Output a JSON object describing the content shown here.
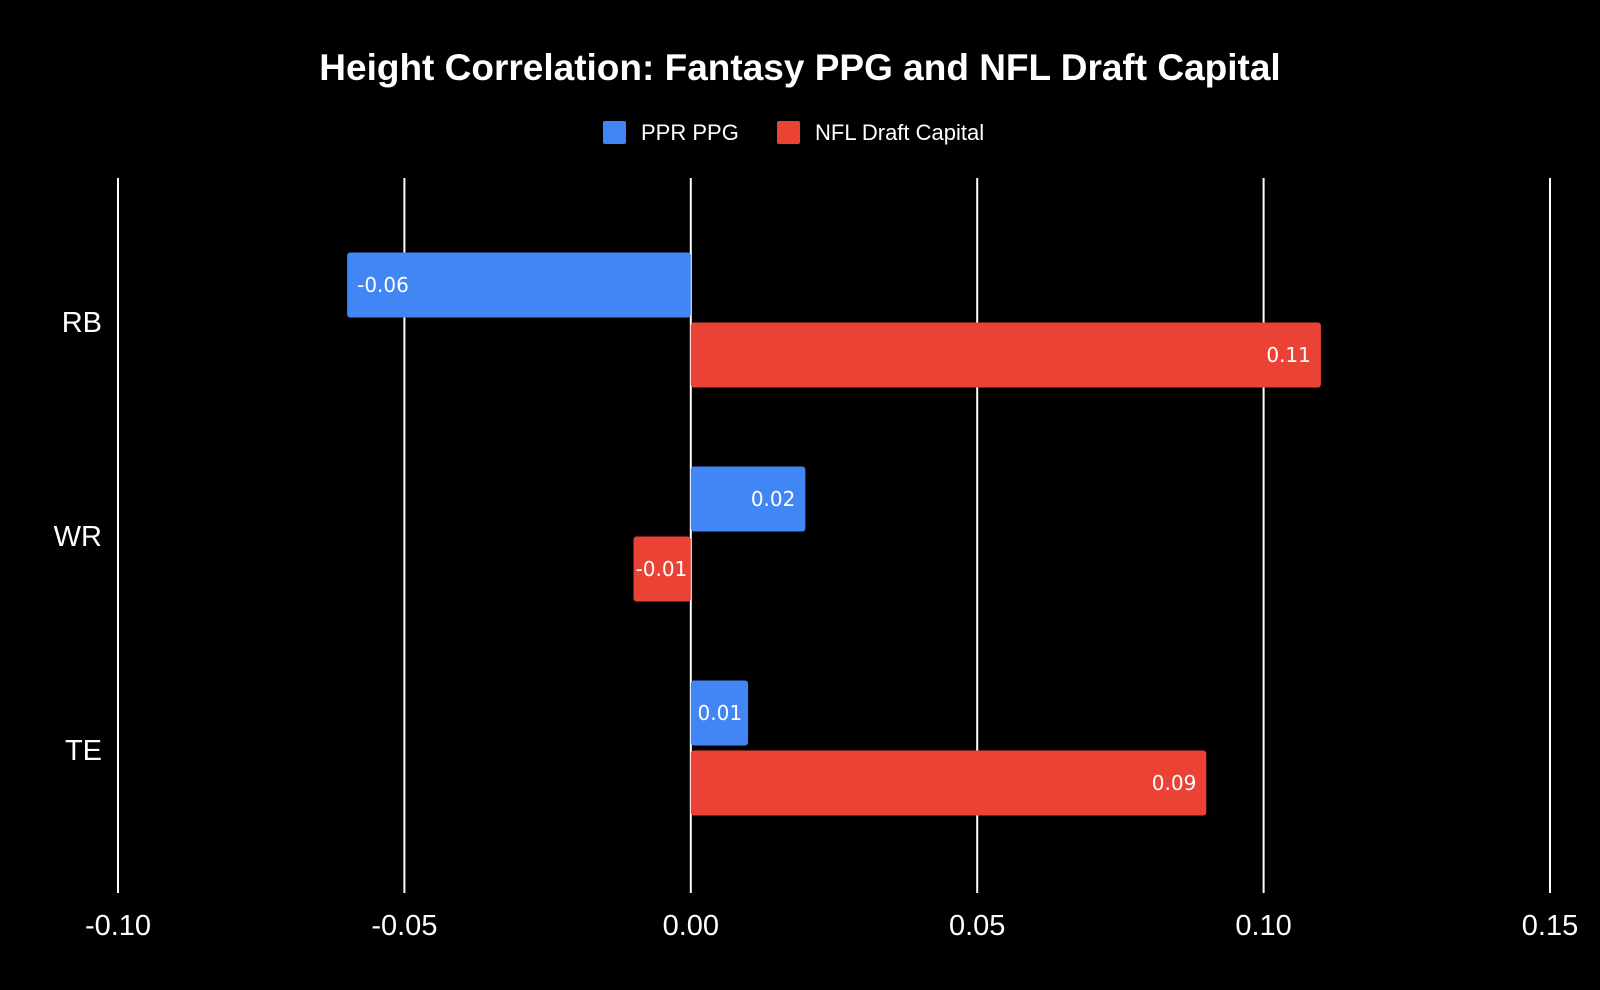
{
  "chart_data": {
    "type": "bar",
    "orientation": "horizontal",
    "title": "Height Correlation: Fantasy PPG and NFL Draft Capital",
    "categories": [
      "RB",
      "WR",
      "TE"
    ],
    "series": [
      {
        "name": "PPR PPG",
        "color": "#4285f4",
        "values": [
          -0.06,
          0.02,
          0.01
        ],
        "labels": [
          "-0.06",
          "0.02",
          "0.01"
        ]
      },
      {
        "name": "NFL Draft Capital",
        "color": "#ea4335",
        "values": [
          0.11,
          -0.01,
          0.09
        ],
        "labels": [
          "0.11",
          "-0.01",
          "0.09"
        ]
      }
    ],
    "xlim": [
      -0.1,
      0.15
    ],
    "xticks": [
      -0.1,
      -0.05,
      0,
      0.05,
      0.1,
      0.15
    ],
    "xtick_labels": [
      "-0.10",
      "-0.05",
      "0.00",
      "0.05",
      "0.10",
      "0.15"
    ],
    "xlabel": "",
    "ylabel": "",
    "grid": true,
    "legend": "top-center",
    "background": "#000000",
    "text_color": "#ffffff"
  }
}
